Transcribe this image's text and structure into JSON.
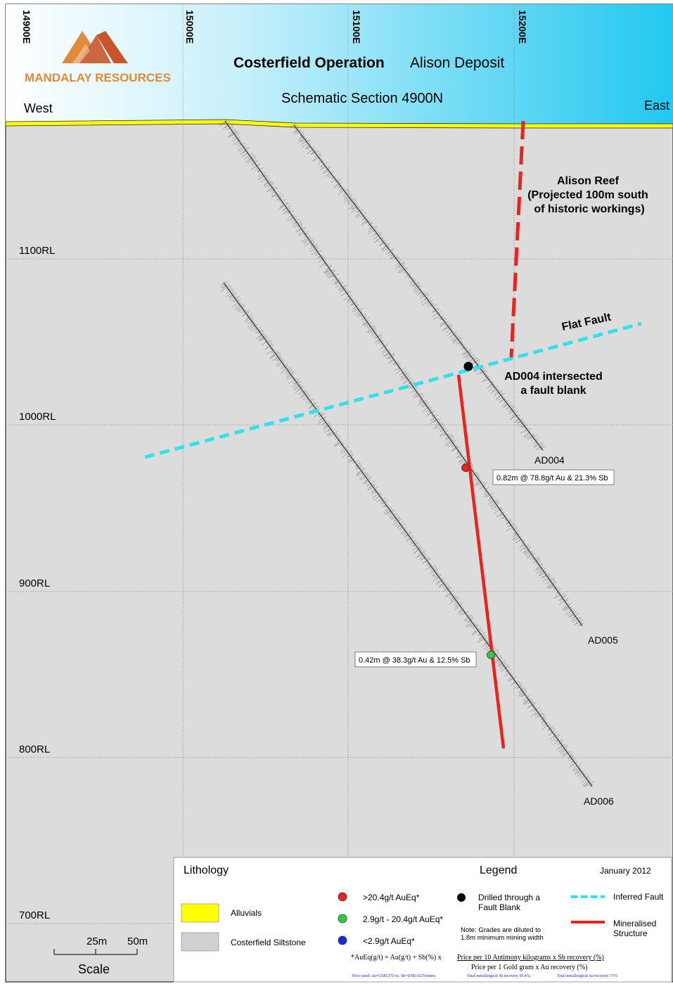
{
  "logo": {
    "company": "MANDALAY RESOURCES"
  },
  "header": {
    "title": "Costerfield Operation",
    "deposit": "Alison Deposit",
    "subtitle": "Schematic Section 4900N",
    "west": "West",
    "east": "East"
  },
  "eastings": [
    "14900E",
    "15000E",
    "15100E",
    "15200E"
  ],
  "rls": [
    "1100RL",
    "1000RL",
    "900RL",
    "800RL",
    "700RL"
  ],
  "features": {
    "reef_line1": "Alison Reef",
    "reef_line2": "(Projected 100m south",
    "reef_line3": "of historic workings)",
    "flat_fault": "Flat Fault",
    "intersect_line1": "AD004 intersected",
    "intersect_line2": "a fault blank"
  },
  "holes": {
    "ad004": "AD004",
    "ad005": "AD005",
    "ad006": "AD006"
  },
  "intercepts": {
    "ad004": "0.82m @ 78.8g/t Au & 21.3% Sb",
    "ad006": "0.42m @ 38.3g/t Au & 12.5% Sb"
  },
  "scale": {
    "l25": "25m",
    "l50": "50m",
    "label": "Scale"
  },
  "legend": {
    "lithology_title": "Lithology",
    "legend_title": "Legend",
    "date": "January 2012",
    "alluvials": "Alluvials",
    "siltstone": "Costerfield Siltstone",
    "grade_high": ">20.4g/t AuEq*",
    "grade_mid": "2.9g/t - 20.4g/t AuEq*",
    "grade_low": "<2.9g/t AuEq*",
    "drilled_line1": "Drilled through a",
    "drilled_line2": "Fault Blank",
    "note_line1": "Note: Grades are diluted to",
    "note_line2": "1.8m minimum mining width",
    "inferred_fault": "Inferred Fault",
    "mineralised_line1": "Mineralised",
    "mineralised_line2": "Structure",
    "formula_left": "*AuEq(g/t) = Au(g/t) + Sb(%) x",
    "formula_num": "Price per 10 Antimony kilograms x Sb recovery (%)",
    "formula_den": "Price per 1 Gold gram x Au recovery (%)",
    "prices": "Price used: Au=US$1275/oz, Sb=US$11625/tonne;",
    "sb_recovery": "Total metallurgical Sb recovery 59.4%;",
    "au_recovery": "Total metallurgical Au recovery 71%"
  },
  "colors": {
    "sky": "#7fdcf5",
    "ground": "#dcdcdc",
    "alluvial": "#ffff00",
    "fault": "#33e0ee",
    "reef": "#e8241f",
    "high": "#e8241f",
    "mid": "#2ecc40",
    "low": "#1a2bd6"
  }
}
